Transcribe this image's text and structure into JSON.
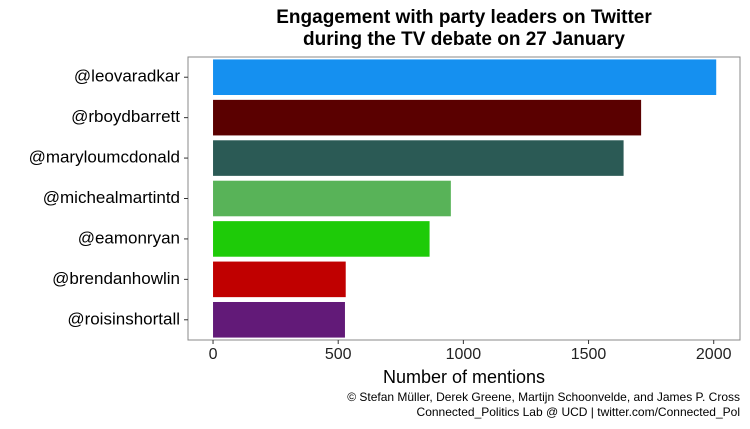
{
  "chart_data": {
    "type": "hbar",
    "title": [
      "Engagement with party leaders on Twitter",
      "during the TV debate on 27 January"
    ],
    "x_label": "Number of mentions",
    "caption": [
      "© Stefan Müller, Derek Greene, Martijn Schoonvelde, and James P. Cross",
      "Connected_Politics Lab @ UCD | twitter.com/Connected_Pol"
    ],
    "categories": [
      "@leovaradkar",
      "@rboydbarrett",
      "@maryloumcdonald",
      "@michealmartintd",
      "@eamonryan",
      "@brendanhowlin",
      "@roisinshortall"
    ],
    "values": [
      2010,
      1710,
      1640,
      950,
      865,
      530,
      527
    ],
    "colors": [
      "#1590f0",
      "#5a0000",
      "#2b5a55",
      "#58b358",
      "#1ecb08",
      "#c00000",
      "#621a78"
    ],
    "xlim": [
      -100,
      2105
    ],
    "xticks": [
      0,
      500,
      1000,
      1500,
      2000
    ],
    "grid": false
  }
}
